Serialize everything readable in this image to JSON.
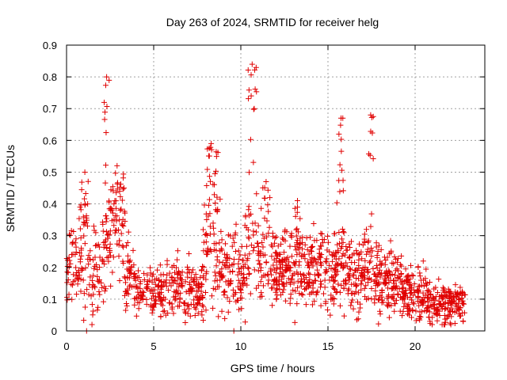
{
  "chart_data": {
    "type": "scatter",
    "title": "Day 263 of 2024, SRMTID for receiver helg",
    "xlabel": "GPS time / hours",
    "ylabel": "SRMTID / TECUs",
    "xlim": [
      0,
      24
    ],
    "ylim": [
      0,
      0.9
    ],
    "x_ticks": [
      0,
      5,
      10,
      15,
      20
    ],
    "y_ticks": [
      0,
      0.1,
      0.2,
      0.3,
      0.4,
      0.5,
      0.6,
      0.7,
      0.8,
      0.9
    ],
    "x_tick_labels": [
      "0",
      "5",
      "10",
      "15",
      "20"
    ],
    "y_tick_labels": [
      "0",
      "0.1",
      "0.2",
      "0.3",
      "0.4",
      "0.5",
      "0.6",
      "0.7",
      "0.8",
      "0.9"
    ],
    "grid": true,
    "marker": "+",
    "series_color": "#e00000",
    "series": [
      {
        "name": "SRMTID",
        "profile": [
          {
            "x": 0.0,
            "level": 0.17,
            "spread": 0.08
          },
          {
            "x": 0.5,
            "level": 0.2,
            "spread": 0.1
          },
          {
            "x": 1.0,
            "level": 0.22,
            "spread": 0.15
          },
          {
            "x": 1.5,
            "level": 0.18,
            "spread": 0.12
          },
          {
            "x": 2.0,
            "level": 0.2,
            "spread": 0.12
          },
          {
            "x": 2.5,
            "level": 0.3,
            "spread": 0.14
          },
          {
            "x": 3.0,
            "level": 0.3,
            "spread": 0.15
          },
          {
            "x": 3.5,
            "level": 0.22,
            "spread": 0.12
          },
          {
            "x": 4.0,
            "level": 0.12,
            "spread": 0.06
          },
          {
            "x": 5.0,
            "level": 0.12,
            "spread": 0.07
          },
          {
            "x": 6.0,
            "level": 0.13,
            "spread": 0.08
          },
          {
            "x": 7.0,
            "level": 0.13,
            "spread": 0.07
          },
          {
            "x": 7.6,
            "level": 0.1,
            "spread": 0.06
          },
          {
            "x": 8.2,
            "level": 0.27,
            "spread": 0.15
          },
          {
            "x": 8.6,
            "level": 0.3,
            "spread": 0.15
          },
          {
            "x": 9.0,
            "level": 0.17,
            "spread": 0.1
          },
          {
            "x": 9.5,
            "level": 0.2,
            "spread": 0.1
          },
          {
            "x": 10.0,
            "level": 0.15,
            "spread": 0.08
          },
          {
            "x": 10.6,
            "level": 0.3,
            "spread": 0.15
          },
          {
            "x": 11.0,
            "level": 0.22,
            "spread": 0.1
          },
          {
            "x": 12.0,
            "level": 0.21,
            "spread": 0.09
          },
          {
            "x": 13.0,
            "level": 0.18,
            "spread": 0.09
          },
          {
            "x": 14.0,
            "level": 0.19,
            "spread": 0.09
          },
          {
            "x": 15.0,
            "level": 0.2,
            "spread": 0.1
          },
          {
            "x": 15.6,
            "level": 0.22,
            "spread": 0.11
          },
          {
            "x": 16.0,
            "level": 0.17,
            "spread": 0.09
          },
          {
            "x": 17.0,
            "level": 0.18,
            "spread": 0.09
          },
          {
            "x": 17.5,
            "level": 0.2,
            "spread": 0.1
          },
          {
            "x": 18.0,
            "level": 0.17,
            "spread": 0.09
          },
          {
            "x": 19.0,
            "level": 0.15,
            "spread": 0.08
          },
          {
            "x": 19.5,
            "level": 0.13,
            "spread": 0.07
          },
          {
            "x": 20.0,
            "level": 0.12,
            "spread": 0.06
          },
          {
            "x": 20.5,
            "level": 0.13,
            "spread": 0.07
          },
          {
            "x": 21.0,
            "level": 0.08,
            "spread": 0.05
          },
          {
            "x": 22.0,
            "level": 0.09,
            "spread": 0.05
          },
          {
            "x": 22.8,
            "level": 0.08,
            "spread": 0.05
          }
        ],
        "bursts": [
          {
            "x": [
              2.15,
              2.45
            ],
            "ymax": 0.8
          },
          {
            "x": [
              2.5,
              3.3
            ],
            "ymax": 0.52
          },
          {
            "x": [
              0.8,
              1.3
            ],
            "ymax": 0.5
          },
          {
            "x": [
              7.9,
              8.7
            ],
            "ymax": 0.59
          },
          {
            "x": [
              10.4,
              10.9
            ],
            "ymax": 0.84
          },
          {
            "x": [
              11.2,
              11.7
            ],
            "ymax": 0.47
          },
          {
            "x": [
              13.1,
              13.4
            ],
            "ymax": 0.41
          },
          {
            "x": [
              15.6,
              15.9
            ],
            "ymax": 0.67
          },
          {
            "x": [
              17.3,
              17.6
            ],
            "ymax": 0.68
          }
        ],
        "zero_markers": [
          {
            "x": 1.15,
            "y": 0.0
          },
          {
            "x": 9.6,
            "y": 0.0
          }
        ],
        "x_range": [
          0.0,
          22.9
        ],
        "approx_point_count": 1700
      }
    ]
  }
}
